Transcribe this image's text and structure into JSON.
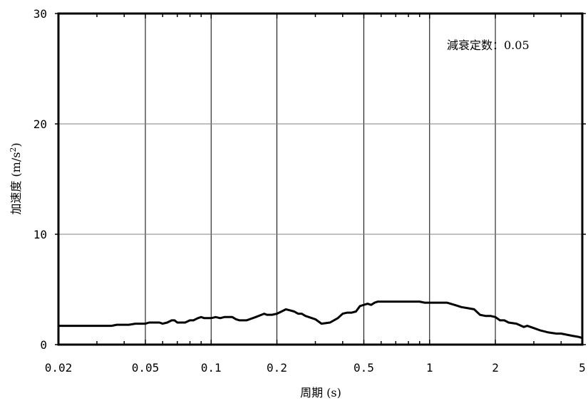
{
  "chart_data": {
    "type": "line",
    "title": "",
    "xlabel": "周期 (s)",
    "ylabel_main": "加速度 (m/s",
    "ylabel_sup": "2",
    "ylabel_close": ")",
    "annotation": "減衰定数：0.05",
    "x_scale": "log",
    "xlim": [
      0.02,
      5
    ],
    "ylim": [
      0,
      30
    ],
    "x_ticks": [
      {
        "value": 0.02,
        "label": "0.02"
      },
      {
        "value": 0.05,
        "label": "0.05"
      },
      {
        "value": 0.1,
        "label": "0.1"
      },
      {
        "value": 0.2,
        "label": "0.2"
      },
      {
        "value": 0.5,
        "label": "0.5"
      },
      {
        "value": 1,
        "label": "1"
      },
      {
        "value": 2,
        "label": "2"
      },
      {
        "value": 5,
        "label": "5"
      }
    ],
    "y_ticks": [
      {
        "value": 0,
        "label": "0"
      },
      {
        "value": 10,
        "label": "10"
      },
      {
        "value": 20,
        "label": "20"
      },
      {
        "value": 30,
        "label": "30"
      }
    ],
    "x_gridlines": [
      0.05,
      0.1,
      0.2,
      0.5,
      1,
      2
    ],
    "y_gridlines": [
      10,
      20
    ],
    "grid": true,
    "line_color": "#000000",
    "grid_color": "#808080",
    "series": [
      {
        "x": [
          0.02,
          0.025,
          0.03,
          0.035,
          0.037,
          0.04,
          0.042,
          0.045,
          0.048,
          0.05,
          0.052,
          0.055,
          0.058,
          0.06,
          0.063,
          0.066,
          0.068,
          0.07,
          0.073,
          0.076,
          0.08,
          0.083,
          0.087,
          0.09,
          0.093,
          0.097,
          0.1,
          0.105,
          0.11,
          0.115,
          0.12,
          0.125,
          0.13,
          0.135,
          0.14,
          0.145,
          0.15,
          0.16,
          0.17,
          0.175,
          0.18,
          0.185,
          0.19,
          0.2,
          0.21,
          0.22,
          0.23,
          0.24,
          0.25,
          0.26,
          0.27,
          0.28,
          0.3,
          0.32,
          0.35,
          0.38,
          0.4,
          0.42,
          0.44,
          0.46,
          0.48,
          0.5,
          0.52,
          0.54,
          0.56,
          0.58,
          0.6,
          0.62,
          0.65,
          0.7,
          0.8,
          0.85,
          0.9,
          0.95,
          1.0,
          1.1,
          1.2,
          1.3,
          1.4,
          1.5,
          1.6,
          1.7,
          1.8,
          1.9,
          2.0,
          2.1,
          2.2,
          2.3,
          2.5,
          2.7,
          2.8,
          3.0,
          3.2,
          3.5,
          3.8,
          4.0,
          4.5,
          4.8,
          5.0
        ],
        "y": [
          1.7,
          1.7,
          1.7,
          1.7,
          1.8,
          1.8,
          1.8,
          1.9,
          1.9,
          1.9,
          2.0,
          2.0,
          2.0,
          1.9,
          2.0,
          2.2,
          2.2,
          2.0,
          2.0,
          2.0,
          2.2,
          2.2,
          2.4,
          2.5,
          2.4,
          2.4,
          2.4,
          2.5,
          2.4,
          2.5,
          2.5,
          2.5,
          2.3,
          2.2,
          2.2,
          2.2,
          2.3,
          2.5,
          2.7,
          2.8,
          2.7,
          2.7,
          2.7,
          2.8,
          3.0,
          3.2,
          3.1,
          3.0,
          2.8,
          2.8,
          2.6,
          2.5,
          2.3,
          1.9,
          2.0,
          2.4,
          2.8,
          2.9,
          2.9,
          3.0,
          3.5,
          3.6,
          3.7,
          3.6,
          3.8,
          3.9,
          3.9,
          3.9,
          3.9,
          3.9,
          3.9,
          3.9,
          3.9,
          3.8,
          3.8,
          3.8,
          3.8,
          3.6,
          3.4,
          3.3,
          3.2,
          2.7,
          2.6,
          2.6,
          2.5,
          2.2,
          2.2,
          2.0,
          1.9,
          1.6,
          1.7,
          1.5,
          1.3,
          1.1,
          1.0,
          1.0,
          0.8,
          0.7,
          0.6
        ]
      }
    ]
  }
}
